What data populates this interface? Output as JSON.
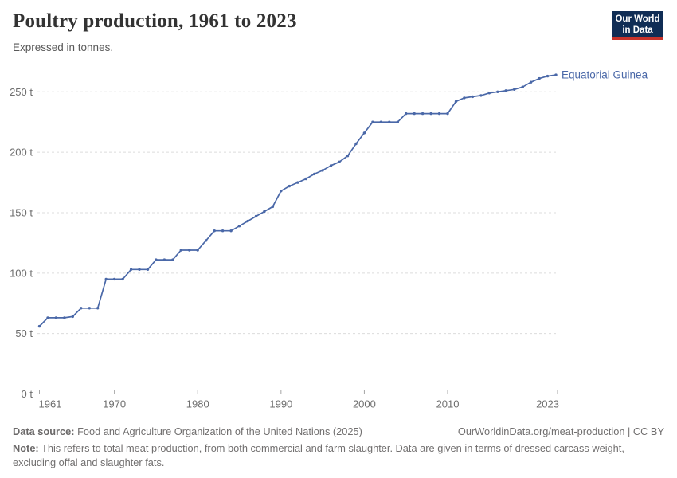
{
  "header": {
    "title": "Poultry production, 1961 to 2023",
    "subtitle": "Expressed in tonnes."
  },
  "logo": {
    "line1": "Our World",
    "line2": "in Data",
    "bg_color": "#102d55",
    "accent_color": "#c8332b"
  },
  "chart_data": {
    "type": "line",
    "title": "Poultry production, 1961 to 2023",
    "unit": "tonnes",
    "xlabel": "",
    "ylabel": "",
    "ylim": [
      0,
      250
    ],
    "xlim": [
      1961,
      2023
    ],
    "grid": "horizontal-dashed",
    "legend_position": "end-of-line-label",
    "line_color": "#4a68a8",
    "grid_color": "#dcdcdc",
    "axis_color": "#a5a5a5",
    "tick_text_color": "#6e6e6e",
    "x": [
      1961,
      1962,
      1963,
      1964,
      1965,
      1966,
      1967,
      1968,
      1969,
      1970,
      1971,
      1972,
      1973,
      1974,
      1975,
      1976,
      1977,
      1978,
      1979,
      1980,
      1981,
      1982,
      1983,
      1984,
      1985,
      1986,
      1987,
      1988,
      1989,
      1990,
      1991,
      1992,
      1993,
      1994,
      1995,
      1996,
      1997,
      1998,
      1999,
      2000,
      2001,
      2002,
      2003,
      2004,
      2005,
      2006,
      2007,
      2008,
      2009,
      2010,
      2011,
      2012,
      2013,
      2014,
      2015,
      2016,
      2017,
      2018,
      2019,
      2020,
      2021,
      2022,
      2023
    ],
    "series": [
      {
        "name": "Equatorial Guinea",
        "color": "#4a68a8",
        "values": [
          56,
          63,
          63,
          63,
          64,
          71,
          71,
          71,
          95,
          95,
          95,
          103,
          103,
          103,
          111,
          111,
          111,
          119,
          119,
          119,
          127,
          135,
          135,
          135,
          139,
          143,
          147,
          151,
          155,
          168,
          172,
          175,
          178,
          182,
          185,
          189,
          192,
          197,
          207,
          216,
          225,
          225,
          225,
          225,
          232,
          232,
          232,
          232,
          232,
          232,
          242,
          245,
          246,
          247,
          249,
          250,
          251,
          252,
          254,
          258,
          261,
          263,
          264
        ]
      }
    ],
    "y_ticks": [
      {
        "value": 0,
        "label": "0 t"
      },
      {
        "value": 50,
        "label": "50 t"
      },
      {
        "value": 100,
        "label": "100 t"
      },
      {
        "value": 150,
        "label": "150 t"
      },
      {
        "value": 200,
        "label": "200 t"
      },
      {
        "value": 250,
        "label": "250 t"
      }
    ],
    "x_ticks": [
      {
        "value": 1961,
        "label": "1961",
        "align": "start"
      },
      {
        "value": 1970,
        "label": "1970",
        "align": "middle"
      },
      {
        "value": 1980,
        "label": "1980",
        "align": "middle"
      },
      {
        "value": 1990,
        "label": "1990",
        "align": "middle"
      },
      {
        "value": 2000,
        "label": "2000",
        "align": "middle"
      },
      {
        "value": 2010,
        "label": "2010",
        "align": "middle"
      },
      {
        "value": 2023,
        "label": "2023",
        "align": "end"
      }
    ]
  },
  "footer": {
    "datasource_label": "Data source:",
    "datasource_text": "Food and Agriculture Organization of the United Nations (2025)",
    "link_text": "OurWorldinData.org/meat-production | CC BY",
    "note_label": "Note:",
    "note_text": "This refers to total meat production, from both commercial and farm slaughter. Data are given in terms of dressed carcass weight, excluding offal and slaughter fats."
  }
}
